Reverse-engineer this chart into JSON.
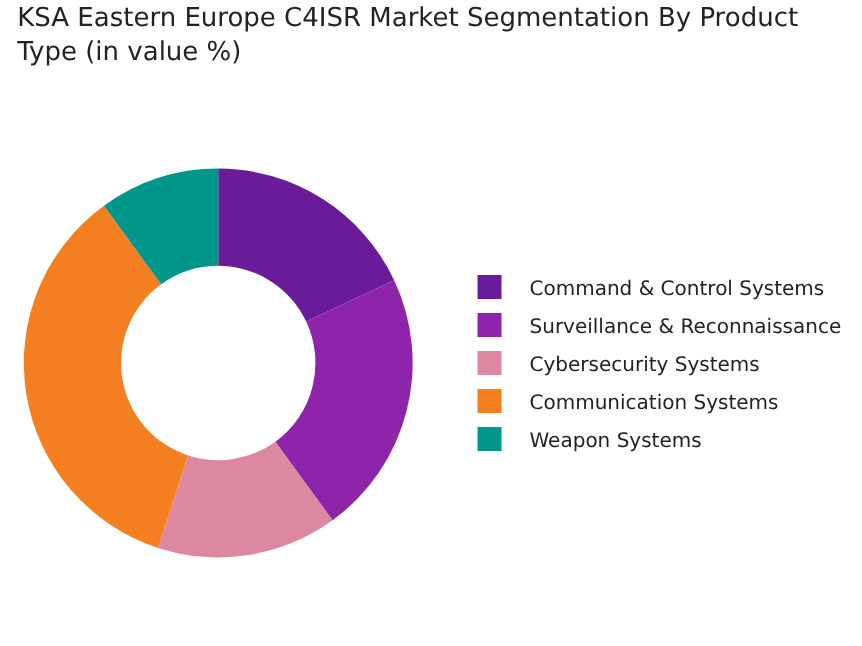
{
  "chart_data": {
    "type": "donut",
    "title": "KSA Eastern Europe C4ISR Market Segmentation By Product Type (in value %)",
    "categories": [
      "Command & Control Systems",
      "Surveillance & Reconnaissance",
      "Cybersecurity Systems",
      "Communication Systems",
      "Weapon Systems"
    ],
    "values": [
      18,
      22,
      15,
      35,
      10
    ],
    "colors": [
      "#6a1b9a",
      "#8e24aa",
      "#de87a0",
      "#f47f20",
      "#00968a"
    ],
    "legend": "right"
  }
}
